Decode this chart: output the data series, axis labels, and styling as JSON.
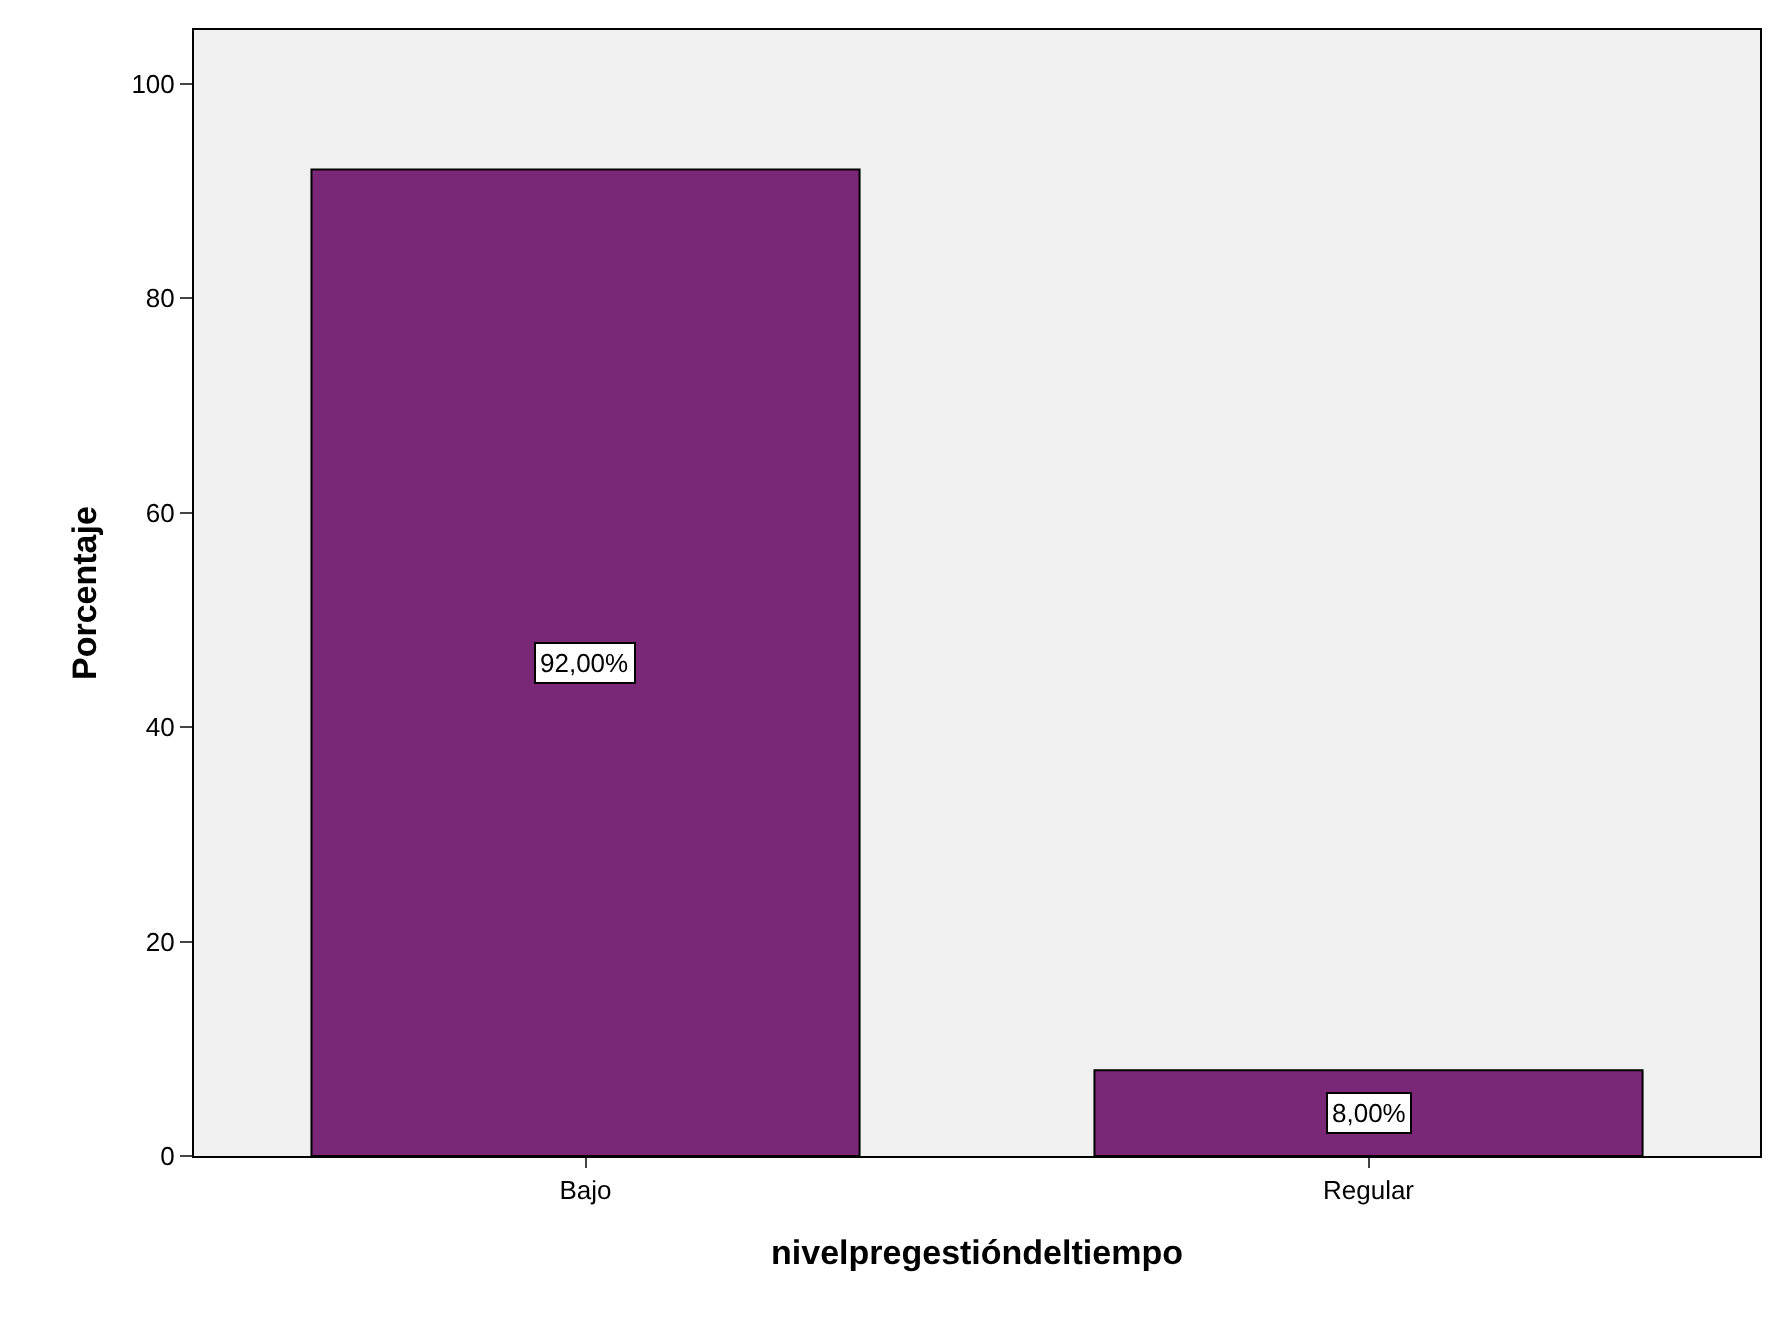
{
  "chart_data": {
    "type": "bar",
    "xlabel": "nivelpregestióndeltiempo",
    "ylabel": "Porcentaje",
    "categories": [
      "Bajo",
      "Regular"
    ],
    "values": [
      92,
      8
    ],
    "value_labels": [
      "92,00%",
      "8,00%"
    ],
    "color": "#7b2777",
    "ylim": [
      0,
      105
    ],
    "yticks": [
      0,
      20,
      40,
      60,
      80,
      100
    ],
    "grid": false
  }
}
